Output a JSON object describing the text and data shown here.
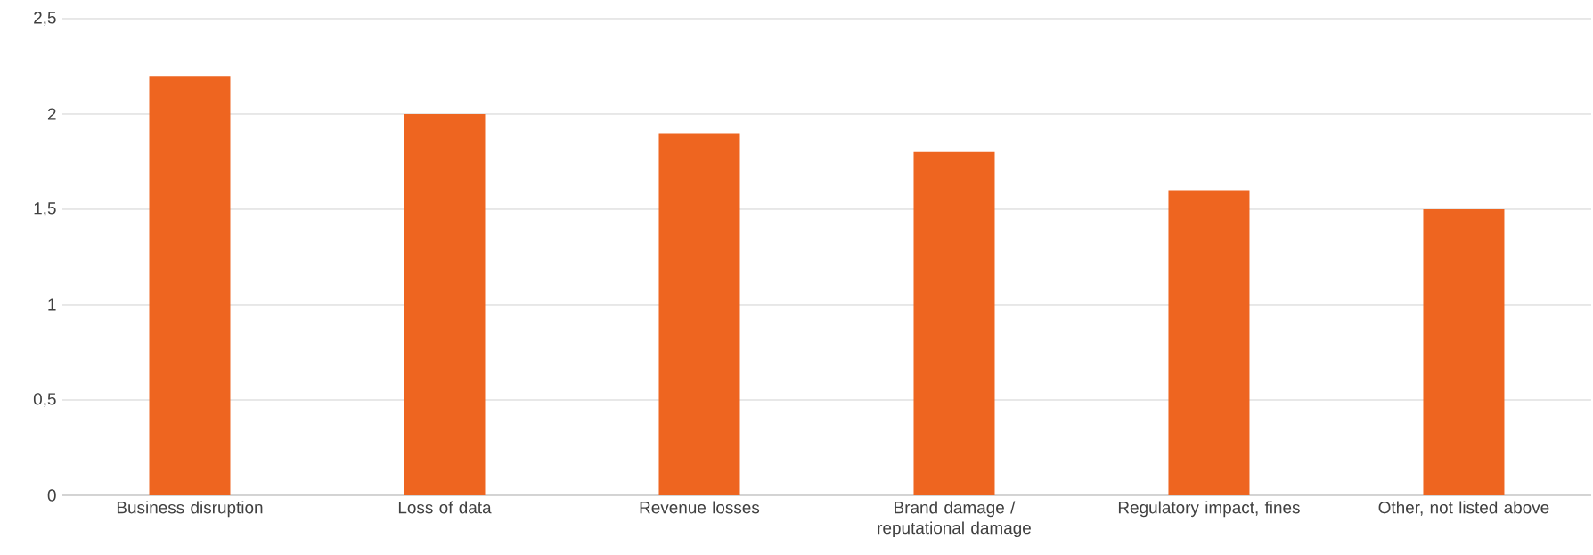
{
  "chart_data": {
    "type": "bar",
    "categories": [
      "Business disruption",
      "Loss of data",
      "Revenue losses",
      "Brand damage / reputational damage",
      "Regulatory impact, fines",
      "Other, not listed above"
    ],
    "values": [
      2.2,
      2.0,
      1.9,
      1.8,
      1.6,
      1.5
    ],
    "color": "#ee6520",
    "ylim": [
      0,
      2.5
    ],
    "yticks": [
      0,
      {
        "value": 0.5,
        "label": "0,5"
      },
      1,
      {
        "value": 1.5,
        "label": "1,5"
      },
      2,
      {
        "value": 2.5,
        "label": "2,5"
      }
    ],
    "grid": "y"
  }
}
